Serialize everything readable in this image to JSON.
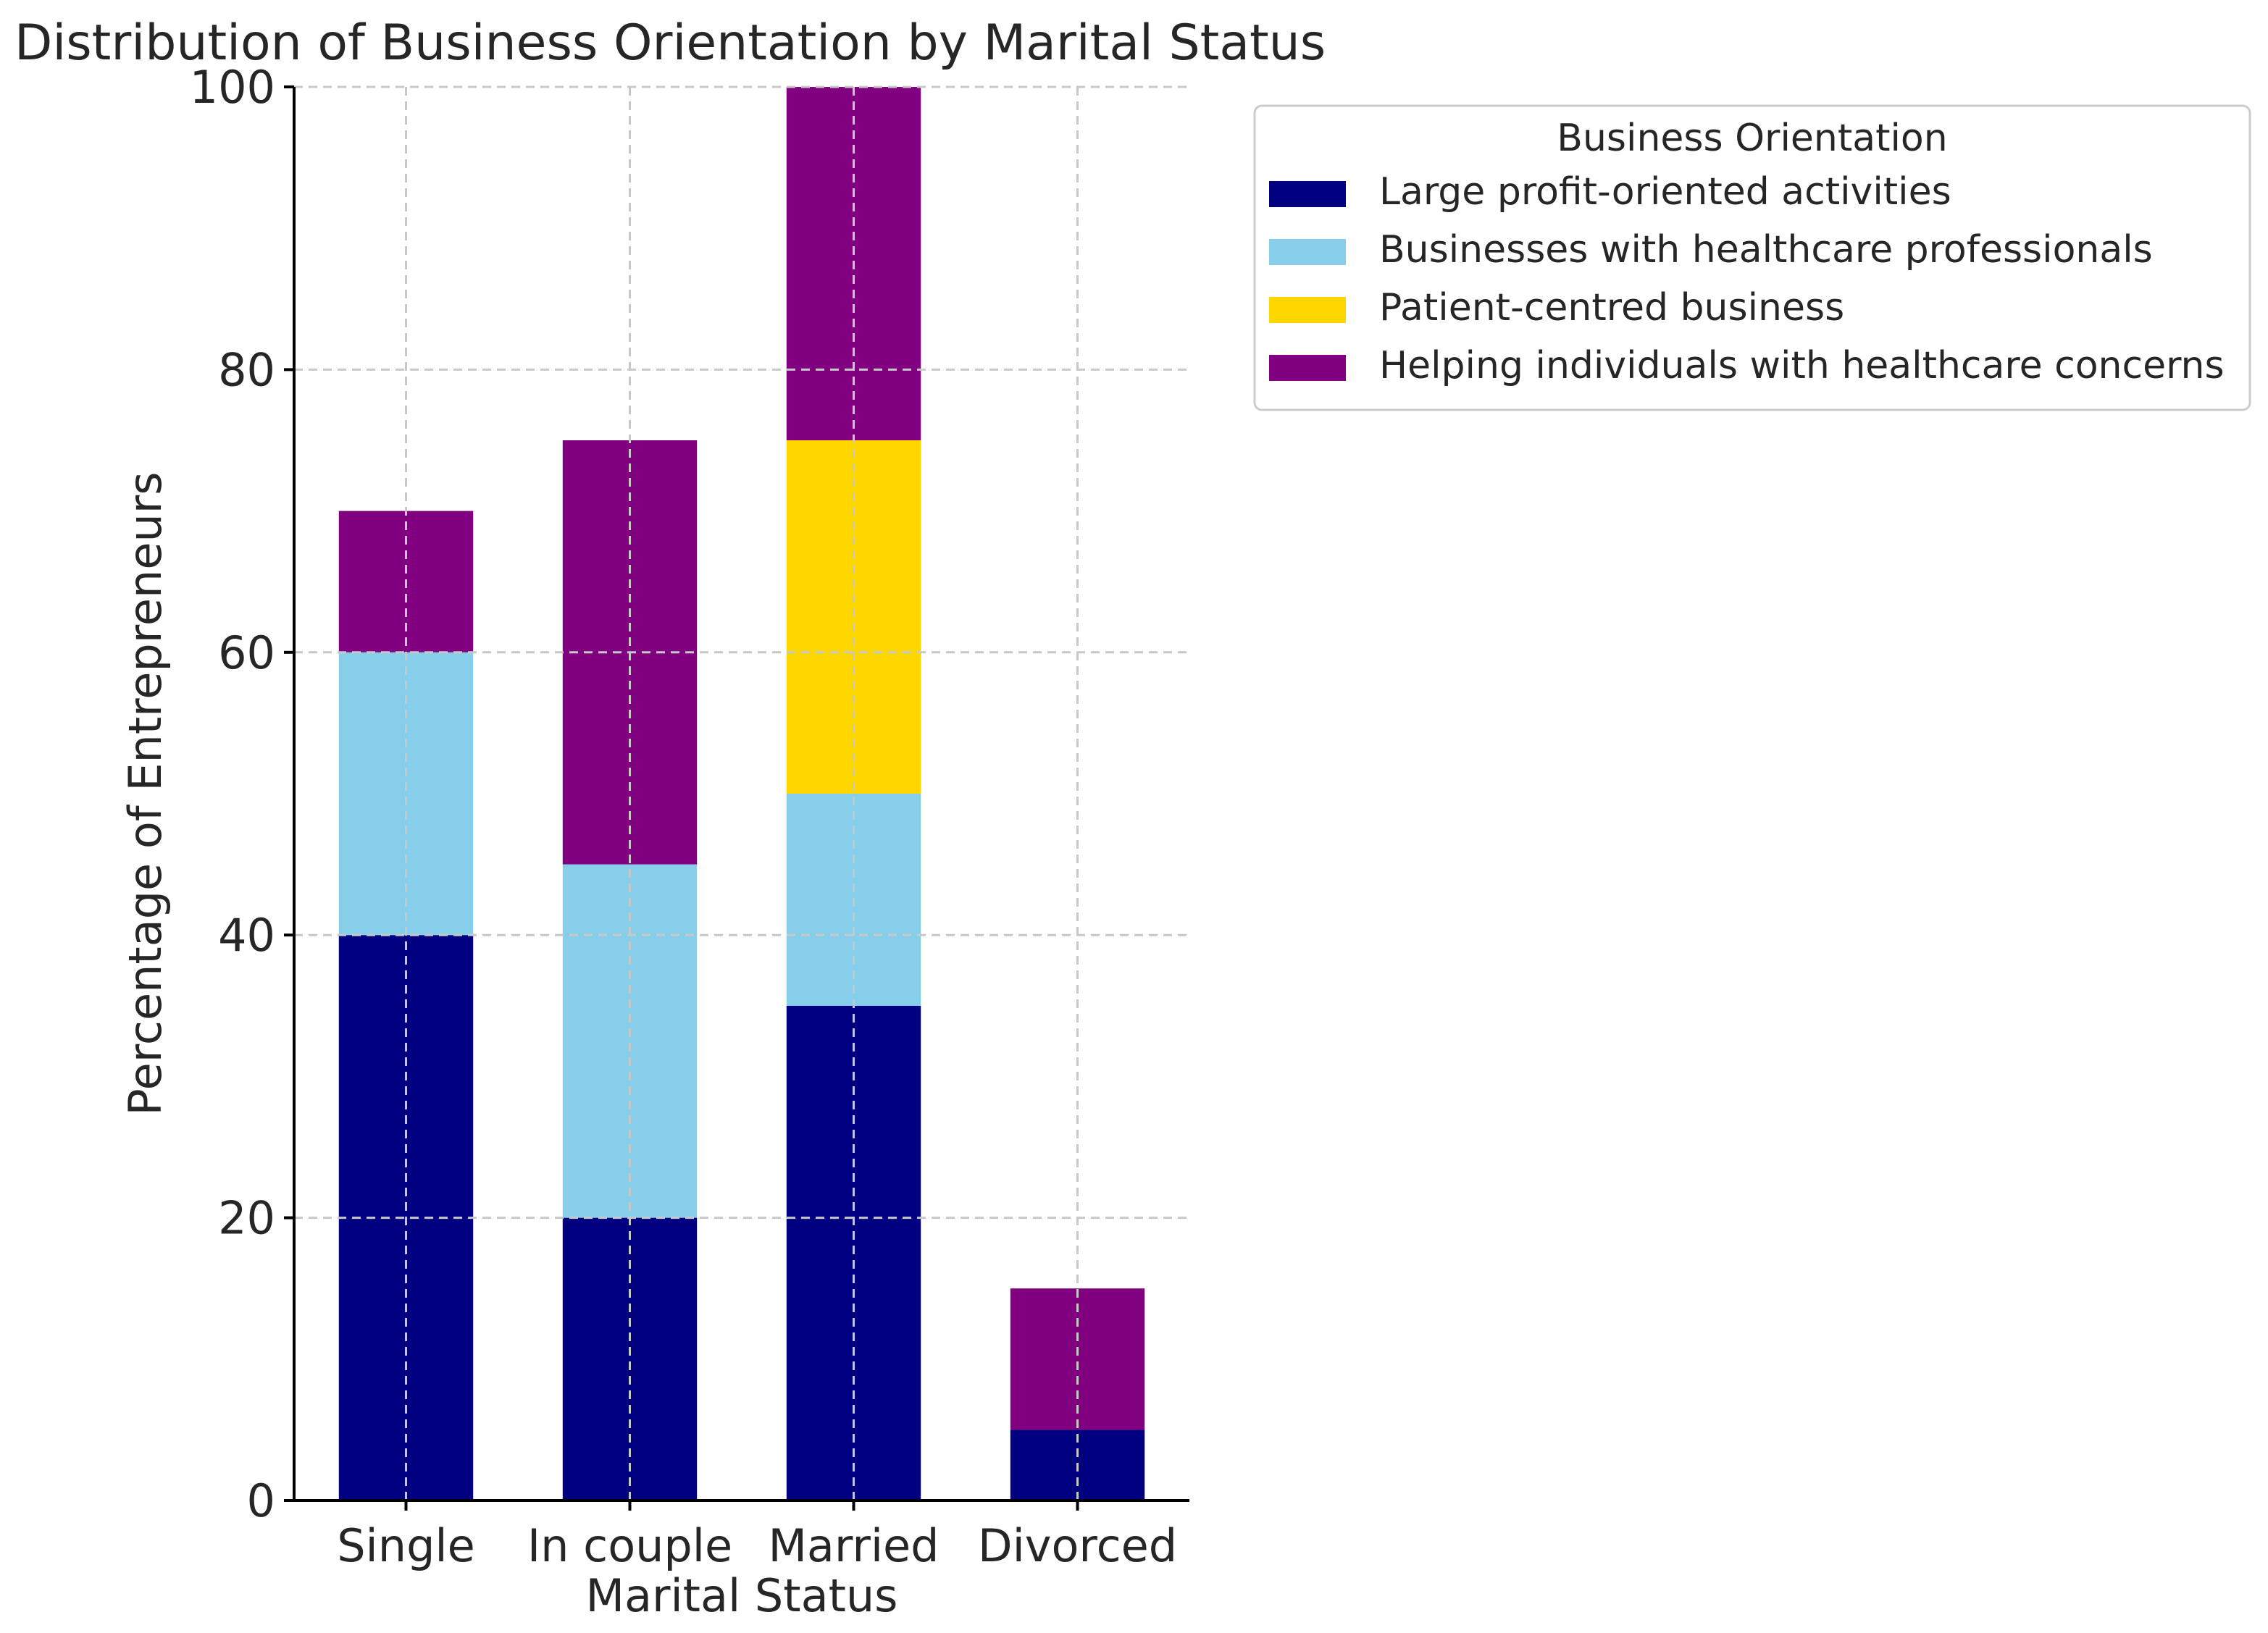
{
  "chart_data": {
    "type": "bar",
    "stacked": true,
    "title": "Distribution of Business Orientation by Marital Status",
    "xlabel": "Marital Status",
    "ylabel": "Percentage of Entrepreneurs",
    "ylim": [
      0,
      100
    ],
    "yticks": [
      0,
      20,
      40,
      60,
      80,
      100
    ],
    "grid": true,
    "legend": {
      "title": "Business Orientation",
      "placement": "outside-right-top"
    },
    "categories": [
      "Single",
      "In couple",
      "Married",
      "Divorced"
    ],
    "series": [
      {
        "name": "Large profit-oriented activities",
        "color": "#000080",
        "values": [
          40,
          20,
          35,
          5
        ]
      },
      {
        "name": "Businesses with healthcare professionals",
        "color": "#87ceeb",
        "values": [
          20,
          25,
          15,
          0
        ]
      },
      {
        "name": "Patient-centred business",
        "color": "#ffd700",
        "values": [
          0,
          0,
          25,
          0
        ]
      },
      {
        "name": "Helping individuals with healthcare concerns",
        "color": "#800080",
        "values": [
          10,
          30,
          25,
          10
        ]
      }
    ]
  }
}
